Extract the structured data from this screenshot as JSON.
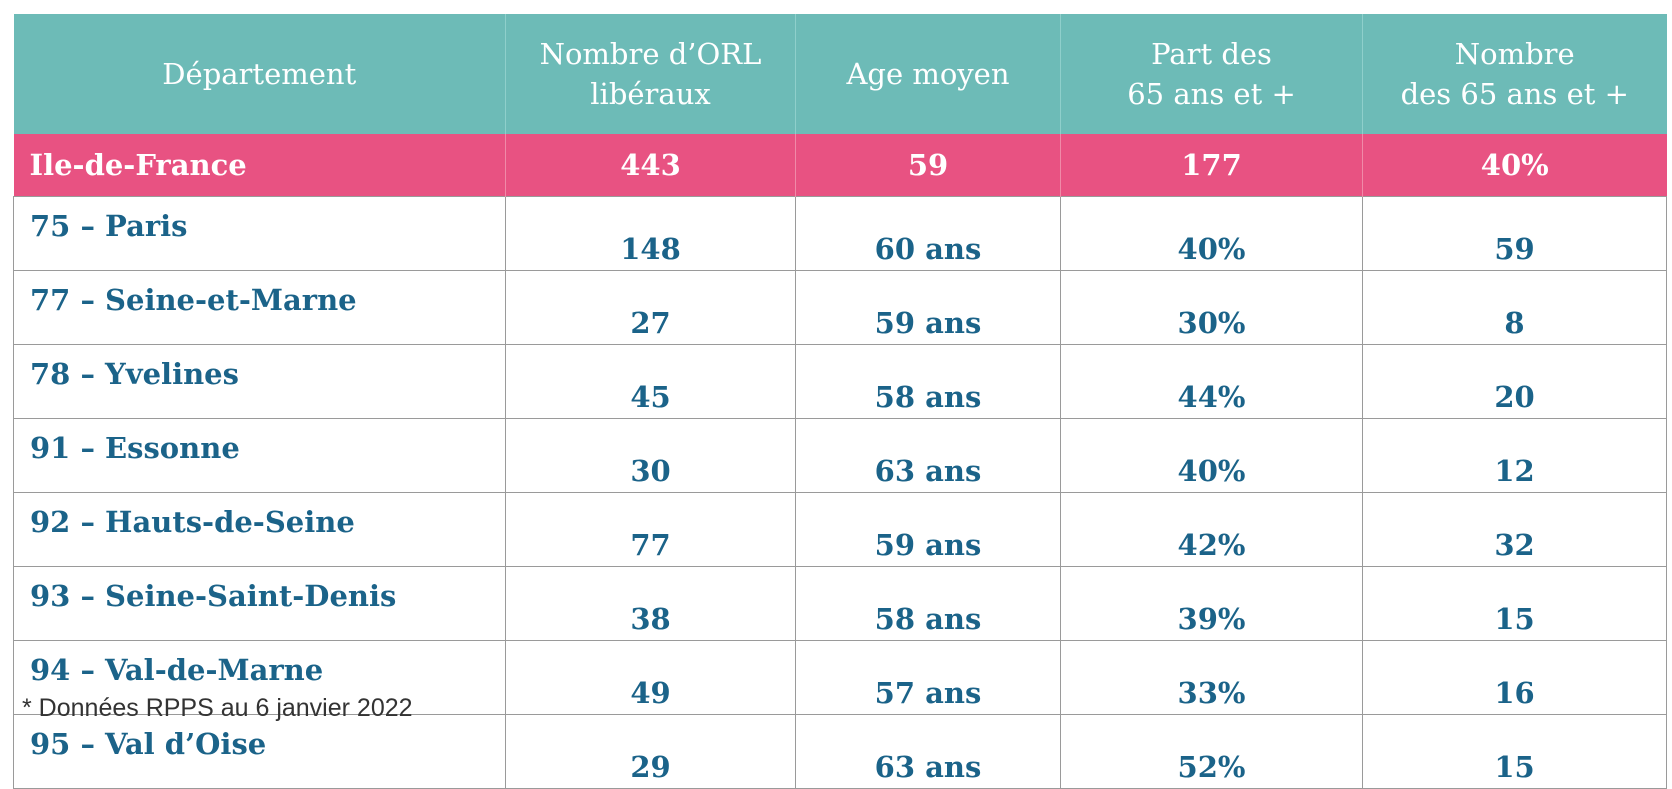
{
  "table": {
    "headers": [
      [
        "Département"
      ],
      [
        "Nombre d’ORL",
        "libéraux"
      ],
      [
        "Age moyen"
      ],
      [
        "Part des",
        "65 ans et +"
      ],
      [
        "Nombre",
        "des 65 ans et +"
      ]
    ],
    "region_row": [
      "Ile-de-France",
      "443",
      "59",
      "177",
      "40%"
    ],
    "rows": [
      [
        "75 – Paris",
        "148",
        "60 ans",
        "40%",
        "59"
      ],
      [
        "77 – Seine-et-Marne",
        "27",
        "59 ans",
        "30%",
        "8"
      ],
      [
        "78 – Yvelines",
        "45",
        "58 ans",
        "44%",
        "20"
      ],
      [
        "91 – Essonne",
        "30",
        "63 ans",
        "40%",
        "12"
      ],
      [
        "92 – Hauts-de-Seine",
        "77",
        "59 ans",
        "42%",
        "32"
      ],
      [
        "93 – Seine-Saint-Denis",
        "38",
        "58 ans",
        "39%",
        "15"
      ],
      [
        "94 – Val-de-Marne",
        "49",
        "57 ans",
        "33%",
        "16"
      ],
      [
        "95 – Val d’Oise",
        "29",
        "63 ans",
        "52%",
        "15"
      ]
    ]
  },
  "footnote": "* Données RPPS au 6 janvier 2022",
  "colors": {
    "header_bg": "#6dbbb7",
    "region_bg": "#e85282",
    "row_text": "#1b6389"
  }
}
